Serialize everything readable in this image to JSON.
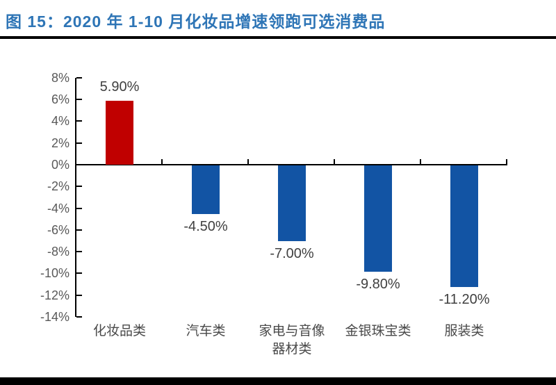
{
  "figure": {
    "title": "图 15：2020 年 1-10 月化妆品增速领跑可选消费品",
    "title_color": "#2E75B6"
  },
  "chart_data": {
    "type": "bar",
    "title": "2020 年 1-10 月化妆品增速领跑可选消费品",
    "categories": [
      "化妆品类",
      "汽车类",
      "家电与音像器材类",
      "金银珠宝类",
      "服装类"
    ],
    "category_display_lines": [
      [
        "化妆品类"
      ],
      [
        "汽车类"
      ],
      [
        "家电与音像",
        "器材类"
      ],
      [
        "金银珠宝类"
      ],
      [
        "服装类"
      ]
    ],
    "values": [
      5.9,
      -4.5,
      -7.0,
      -9.8,
      -11.2
    ],
    "data_labels": [
      "5.90%",
      "-4.50%",
      "-7.00%",
      "-9.80%",
      "-11.20%"
    ],
    "bar_colors": [
      "#C00000",
      "#1254A4",
      "#1254A4",
      "#1254A4",
      "#1254A4"
    ],
    "y_tick_labels": [
      "8%",
      "6%",
      "4%",
      "2%",
      "0%",
      "-2%",
      "-4%",
      "-6%",
      "-8%",
      "-10%",
      "-12%",
      "-14%"
    ],
    "y_tick_values": [
      8,
      6,
      4,
      2,
      0,
      -2,
      -4,
      -6,
      -8,
      -10,
      -12,
      -14
    ],
    "ylim": [
      -14,
      8
    ],
    "xlabel": "",
    "ylabel": "",
    "grid": "off",
    "legend": "none",
    "colors": {
      "accent_red": "#C00000",
      "accent_blue": "#1254A4",
      "axis": "#000000",
      "tick_label": "#595959",
      "data_label": "#404040",
      "category_label": "#4A4A4A"
    }
  }
}
